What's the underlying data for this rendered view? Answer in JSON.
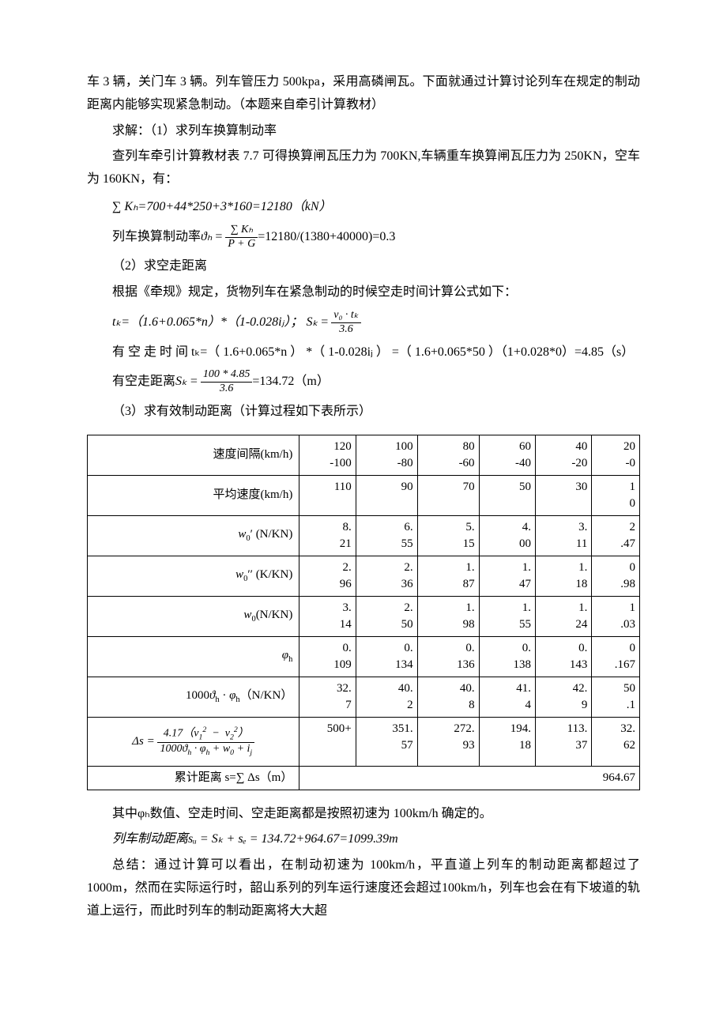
{
  "intro": {
    "p1": "车 3 辆，关门车 3 辆。列车管压力 500kpa，采用高磷闸瓦。下面就通过计算讨论列车在规定的制动距离内能够实现紧急制动。（本题来自牵引计算教材）",
    "p2": "求解：（1）求列车换算制动率",
    "p3": "查列车牵引计算教材表 7.7 可得换算闸瓦压力为 700KN,车辆重车换算闸瓦压力为 250KN，空车为 160KN，有：",
    "sumK": "∑ Kₕ=700+44*250+3*160=12180（kN）",
    "ratio_label": "列车换算制动率",
    "ratio_var": "ϑₕ",
    "ratio_eq_pre": " = ",
    "ratio_frac_num": "∑ Kₕ",
    "ratio_frac_den": "P + G",
    "ratio_result": "=12180/(1380+40000)=0.3"
  },
  "sect2": {
    "title": "（2）求空走距离",
    "p1": "根据《牵规》规定，货物列车在紧急制动的时候空走时间计算公式如下：",
    "tk_formula_pre": "tₖ=（1.6+0.065*n）*（1-0.028iⱼ）；",
    "sk_var": "Sₖ",
    "sk_frac_num": "v₀ · tₖ",
    "sk_frac_den": "3.6",
    "tk_line": "有 空 走 时 间 tₖ=（ 1.6+0.065*n ） *（ 1-0.028iⱼ ） =（ 1.6+0.065*50 ）（1+0.028*0）=4.85（s）",
    "sk_label": "有空走距离",
    "sk_var2": "Sₖ",
    "sk_frac2_num": "100 * 4.85",
    "sk_frac2_den": "3.6",
    "sk_result": "=134.72（m）"
  },
  "sect3": {
    "title": "（3）求有效制动距离（计算过程如下表所示）"
  },
  "table": {
    "rows": [
      {
        "head": "速度间隔(km/h)",
        "cells": [
          "120-100",
          "100-80",
          "80-60",
          "60-40",
          "40-20",
          "20-0"
        ]
      },
      {
        "head": "平均速度(km/h)",
        "cells": [
          "110",
          "90",
          "70",
          "50",
          "30",
          "10"
        ]
      },
      {
        "head": "w₀′ (N/KN)",
        "cells": [
          "8.21",
          "6.55",
          "5.15",
          "4.00",
          "3.11",
          "2.47"
        ]
      },
      {
        "head": "w₀′′ (K/KN)",
        "cells": [
          "2.96",
          "2.36",
          "1.87",
          "1.47",
          "1.18",
          "0.98"
        ]
      },
      {
        "head": "w₀(N/KN)",
        "cells": [
          "3.14",
          "2.50",
          "1.98",
          "1.55",
          "1.24",
          "1.03"
        ]
      },
      {
        "head": "φₕ",
        "cells": [
          "0.109",
          "0.134",
          "0.136",
          "0.138",
          "0.143",
          "0.167"
        ]
      },
      {
        "head": "1000ϑₕ · φₕ（N/KN）",
        "cells": [
          "32.7",
          "40.2",
          "40.8",
          "41.4",
          "42.9",
          "50.1"
        ]
      },
      {
        "head_type": "delta_s",
        "cells": [
          "500+",
          "351.57",
          "272.93",
          "194.18",
          "113.37",
          "32.62"
        ]
      }
    ],
    "total_label": "累计距离 s=∑ Δs（m）",
    "total_value": "964.67"
  },
  "concl": {
    "p1": "其中φₕ数值、空走时间、空走距离都是按照初速为 100km/h 确定的。",
    "p2": "列车制动距离sᵤ = Sₖ + sₑ = 134.72+964.67=1099.39m",
    "p3": "总结：通过计算可以看出，在制动初速为 100km/h，平直道上列车的制动距离都超过了 1000m，然而在实际运行时，韶山系列的列车运行速度还会超过100km/h，列车也会在有下坡道的轨道上运行，而此时列车的制动距离将大大超"
  }
}
